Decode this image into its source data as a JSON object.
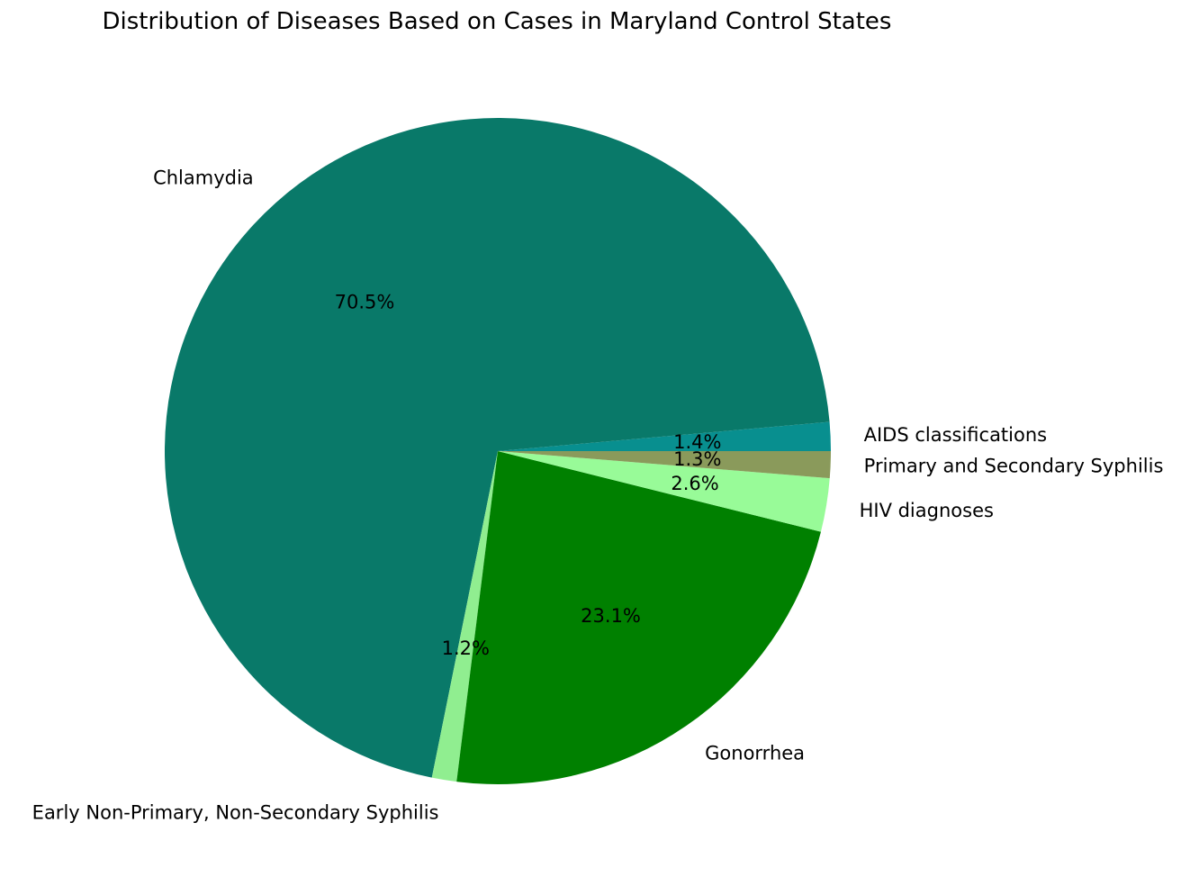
{
  "chart_data": {
    "type": "pie",
    "title": "Distribution of Diseases Based on Cases in Maryland Control States",
    "start_angle_deg": 0,
    "direction": "counterclockwise",
    "slices": [
      {
        "label": "AIDS classifications",
        "value": 1.4,
        "pct_label": "1.4%",
        "color": "#088F8F"
      },
      {
        "label": "Chlamydia",
        "value": 70.5,
        "pct_label": "70.5%",
        "color": "#097969"
      },
      {
        "label": "Early Non-Primary, Non-Secondary Syphilis",
        "value": 1.2,
        "pct_label": "1.2%",
        "color": "#90EE90"
      },
      {
        "label": "Gonorrhea",
        "value": 23.1,
        "pct_label": "23.1%",
        "color": "#008000"
      },
      {
        "label": "HIV diagnoses",
        "value": 2.6,
        "pct_label": "2.6%",
        "color": "#98FB98"
      },
      {
        "label": "Primary and Secondary Syphilis",
        "value": 1.3,
        "pct_label": "1.3%",
        "color": "#8A9A5B"
      }
    ]
  }
}
